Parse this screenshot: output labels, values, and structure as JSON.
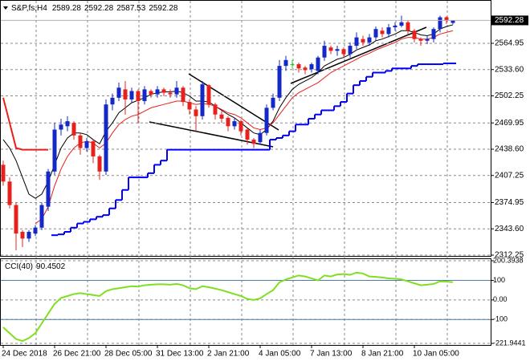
{
  "chart_data": [
    {
      "type": "candlestick",
      "symbol": "S&P,fs,H4",
      "categories": [
        "24 Dec 2018",
        null,
        null,
        null,
        null,
        null,
        null,
        null,
        "26 Dec 21:00",
        null,
        null,
        null,
        null,
        null,
        null,
        null,
        "28 Dec 05:00",
        null,
        null,
        null,
        null,
        null,
        null,
        null,
        "31 Dec 13:00",
        null,
        null,
        null,
        null,
        null,
        null,
        null,
        "2 Jan 21:00",
        null,
        null,
        null,
        null,
        null,
        null,
        null,
        "4 Jan 05:00",
        null,
        null,
        null,
        null,
        null,
        null,
        null,
        "7 Jan 13:00",
        null,
        null,
        null,
        null,
        null,
        null,
        null,
        "8 Jan 21:00",
        null,
        null,
        null,
        null,
        null,
        null,
        null,
        "10 Jan 05:00",
        null,
        null,
        null,
        null,
        null,
        null
      ],
      "open": [
        2420,
        2400,
        2372,
        2340,
        2332,
        2338,
        2345,
        2370,
        2412,
        2462,
        2466,
        2470,
        2455,
        2440,
        2448,
        2430,
        2412,
        2492,
        2500,
        2510,
        2498,
        2508,
        2496,
        2508,
        2504,
        2510,
        2506,
        2504,
        2512,
        2495,
        2486,
        2478,
        2515,
        2492,
        2480,
        2476,
        2466,
        2472,
        2462,
        2450,
        2447,
        2458,
        2488,
        2500,
        2538,
        2540,
        2540,
        2536,
        2534,
        2532,
        2548,
        2560,
        2556,
        2558,
        2552,
        2562,
        2570,
        2566,
        2572,
        2580,
        2576,
        2584,
        2586,
        2590,
        2580,
        2570,
        2568,
        2570,
        2582,
        2596,
        2589.28
      ],
      "high": [
        2425,
        2405,
        2375,
        2342,
        2342,
        2348,
        2375,
        2415,
        2470,
        2475,
        2478,
        2472,
        2458,
        2452,
        2450,
        2432,
        2498,
        2505,
        2518,
        2520,
        2512,
        2510,
        2514,
        2510,
        2514,
        2512,
        2510,
        2520,
        2514,
        2498,
        2490,
        2520,
        2516,
        2494,
        2484,
        2478,
        2476,
        2474,
        2464,
        2452,
        2462,
        2492,
        2505,
        2545,
        2550,
        2545,
        2542,
        2538,
        2542,
        2550,
        2568,
        2562,
        2562,
        2560,
        2566,
        2578,
        2574,
        2576,
        2585,
        2584,
        2588,
        2590,
        2598,
        2592,
        2582,
        2572,
        2574,
        2584,
        2598,
        2597,
        2592.28
      ],
      "low": [
        2395,
        2368,
        2318,
        2322,
        2328,
        2335,
        2342,
        2365,
        2408,
        2455,
        2460,
        2450,
        2432,
        2436,
        2422,
        2402,
        2408,
        2485,
        2496,
        2480,
        2494,
        2470,
        2492,
        2500,
        2500,
        2502,
        2500,
        2500,
        2490,
        2480,
        2460,
        2474,
        2488,
        2474,
        2470,
        2460,
        2462,
        2455,
        2444,
        2440,
        2444,
        2455,
        2485,
        2496,
        2532,
        2535,
        2530,
        2528,
        2530,
        2528,
        2544,
        2552,
        2550,
        2548,
        2548,
        2558,
        2562,
        2562,
        2568,
        2572,
        2572,
        2580,
        2584,
        2576,
        2566,
        2562,
        2564,
        2566,
        2578,
        2588,
        2587.53
      ],
      "close": [
        2400,
        2372,
        2338,
        2332,
        2340,
        2345,
        2372,
        2412,
        2462,
        2468,
        2472,
        2455,
        2440,
        2448,
        2430,
        2412,
        2492,
        2500,
        2512,
        2498,
        2508,
        2496,
        2510,
        2504,
        2510,
        2506,
        2504,
        2512,
        2495,
        2486,
        2478,
        2516,
        2492,
        2480,
        2475,
        2466,
        2472,
        2460,
        2450,
        2445,
        2458,
        2488,
        2500,
        2538,
        2545,
        2540,
        2535,
        2533,
        2540,
        2548,
        2562,
        2556,
        2558,
        2552,
        2562,
        2572,
        2566,
        2572,
        2582,
        2576,
        2584,
        2586,
        2590,
        2580,
        2570,
        2568,
        2570,
        2582,
        2596,
        2592,
        2592.28
      ],
      "up_color": "#1428c8",
      "down_color": "#e8201c",
      "flat_color": "#22cc22",
      "lines": [
        {
          "color": "#000000",
          "style": "line",
          "values": [
            2450,
            2440,
            2425,
            2405,
            2385,
            2380,
            2385,
            2400,
            2420,
            2440,
            2452,
            2458,
            2458,
            2456,
            2450,
            2445,
            2460,
            2470,
            2482,
            2488,
            2494,
            2497,
            2500,
            2504,
            2506,
            2507,
            2507,
            2508,
            2506,
            2502,
            2496,
            2496,
            2495,
            2490,
            2485,
            2480,
            2476,
            2470,
            2464,
            2458,
            2456,
            2462,
            2472,
            2488,
            2500,
            2510,
            2516,
            2520,
            2524,
            2530,
            2538,
            2542,
            2546,
            2548,
            2552,
            2557,
            2560,
            2563,
            2568,
            2570,
            2573,
            2576,
            2580,
            2580,
            2578,
            2575,
            2574,
            2576,
            2582,
            2585,
            2587
          ]
        },
        {
          "color": "#e8201c",
          "style": "line",
          "values": [
            null,
            null,
            null,
            null,
            null,
            2350,
            2355,
            2370,
            2395,
            2415,
            2430,
            2440,
            2446,
            2448,
            2446,
            2440,
            2446,
            2458,
            2468,
            2474,
            2478,
            2480,
            2484,
            2488,
            2490,
            2492,
            2494,
            2496,
            2496,
            2494,
            2492,
            2493,
            2492,
            2490,
            2486,
            2482,
            2480,
            2476,
            2470,
            2464,
            2462,
            2464,
            2470,
            2480,
            2490,
            2500,
            2506,
            2510,
            2514,
            2518,
            2524,
            2530,
            2534,
            2538,
            2542,
            2546,
            2550,
            2553,
            2557,
            2560,
            2563,
            2566,
            2570,
            2572,
            2572,
            2570,
            2570,
            2572,
            2576,
            2578,
            2580
          ]
        },
        {
          "color": "#0000ff",
          "style": "step",
          "values": [
            null,
            null,
            null,
            null,
            null,
            null,
            null,
            null,
            2336,
            2337,
            2340,
            2345,
            2350,
            2352,
            2355,
            2358,
            2360,
            2368,
            2378,
            2390,
            2405,
            2405,
            2405,
            2410,
            2420,
            2425,
            2438,
            2438,
            2438,
            2438,
            2438,
            2438,
            2438,
            2438,
            2438,
            2438,
            2438,
            2438,
            2438,
            2438,
            2438,
            2438,
            2450,
            2452,
            2455,
            2460,
            2468,
            2468,
            2475,
            2480,
            2485,
            2485,
            2490,
            2495,
            2505,
            2515,
            2520,
            2525,
            2530,
            2530,
            2532,
            2535,
            2535,
            2535,
            2538,
            2540,
            2540,
            2540,
            2540,
            2541,
            2541
          ]
        },
        {
          "color": "#e8201c",
          "style": "line",
          "values": [
            2500,
            2470,
            2440,
            2438,
            2438,
            2438,
            2438,
            2438,
            null,
            null,
            null,
            null,
            null,
            null,
            null,
            null,
            null,
            null,
            null,
            null,
            null,
            null,
            null,
            null,
            null,
            null,
            null,
            null,
            null,
            null,
            null,
            null,
            null,
            null,
            null,
            null,
            null,
            null,
            null,
            null,
            null,
            null,
            null,
            null,
            null,
            null,
            null,
            null,
            null,
            null,
            null,
            null,
            null,
            null,
            null,
            null,
            null,
            null,
            null,
            null,
            null,
            null,
            null,
            null,
            null,
            null,
            null,
            null,
            null,
            null,
            null
          ]
        }
      ],
      "ylim": [
        2312.25,
        2614.7
      ],
      "yticks": [
        2564.95,
        {
          "value": 2533.6,
          "label": "2533.60"
        },
        2502.25,
        2469.95,
        {
          "value": 2438.6,
          "label": "2438.60"
        },
        2407.25,
        2374.95,
        {
          "value": 2343.6,
          "label": "2343.60"
        },
        2312.25
      ],
      "grid": true
    },
    {
      "type": "line",
      "title": "CCI(40)",
      "color": "#80e020",
      "values": [
        -140,
        -170,
        -200,
        -210,
        -195,
        -170,
        -120,
        -70,
        -20,
        10,
        20,
        30,
        35,
        30,
        25,
        20,
        45,
        55,
        60,
        65,
        70,
        68,
        75,
        78,
        80,
        80,
        78,
        82,
        75,
        60,
        55,
        70,
        65,
        58,
        50,
        40,
        30,
        20,
        5,
        0,
        8,
        30,
        50,
        90,
        105,
        115,
        125,
        120,
        110,
        100,
        125,
        120,
        130,
        132,
        128,
        140,
        135,
        120,
        118,
        115,
        110,
        108,
        105,
        95,
        85,
        75,
        78,
        82,
        95,
        94,
        90.4502
      ],
      "ylim": [
        -221.9441,
        200.3938
      ],
      "yticks": [
        200.3938,
        100,
        {
          "value": 0,
          "label": "0.00"
        },
        -100,
        -221.9441
      ],
      "levels": [
        100,
        -100
      ],
      "level_color": "#4a7fa8",
      "grid": true
    }
  ]
}
